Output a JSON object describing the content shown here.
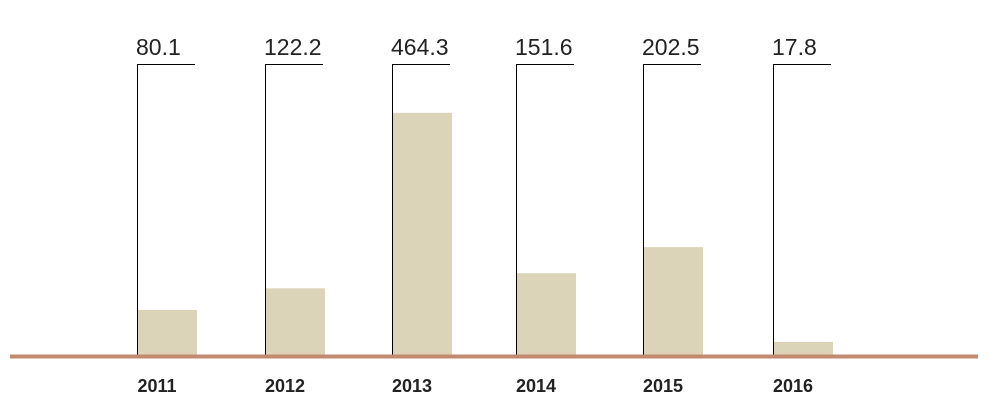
{
  "chart_data": {
    "type": "bar",
    "categories": [
      "2011",
      "2012",
      "2013",
      "2014",
      "2015",
      "2016"
    ],
    "values": [
      80.1,
      122.2,
      464.3,
      151.6,
      202.5,
      17.8
    ],
    "data_labels": [
      "80.1",
      "122.2",
      "464.3",
      "151.6",
      "202.5",
      "17.8"
    ],
    "title": "",
    "xlabel": "",
    "ylabel": "",
    "ylim": [
      0,
      480
    ],
    "grid": false,
    "legend": "none",
    "colors": {
      "bar": "#dcd4b9",
      "baseline": "#c28a6e",
      "leader": "#000000",
      "text": "#222222"
    }
  }
}
